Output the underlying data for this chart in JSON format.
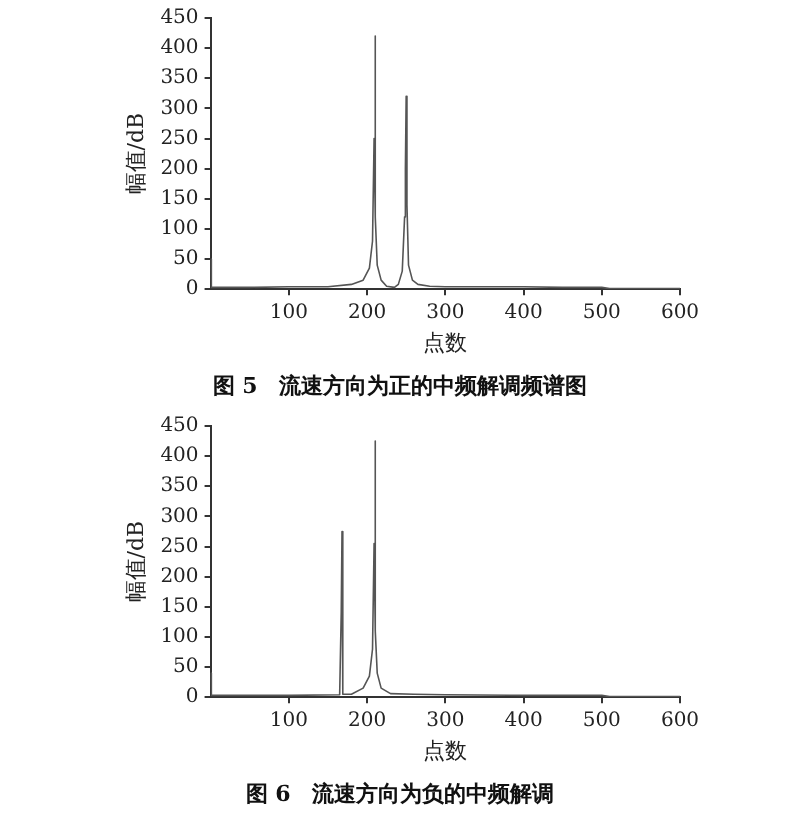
{
  "chart_data": [
    {
      "type": "line",
      "title": "图 5　流速方向为正的中频解调频谱图",
      "xlabel": "点数",
      "ylabel": "幅值/dB",
      "xlim": [
        0,
        600
      ],
      "xticks": [
        100,
        200,
        300,
        400,
        500,
        600
      ],
      "ylim": [
        0,
        450
      ],
      "yticks": [
        0,
        50,
        100,
        150,
        200,
        250,
        300,
        350,
        400,
        450
      ],
      "grid": false,
      "legend": false,
      "marker": "none",
      "line_style": "solid",
      "series": [
        {
          "color": "#555555",
          "x": [
            0,
            1,
            50,
            100,
            150,
            180,
            195,
            203,
            207,
            209,
            210,
            211,
            213,
            218,
            225,
            235,
            240,
            245,
            248,
            249,
            250,
            251,
            253,
            258,
            265,
            280,
            300,
            350,
            400,
            450,
            500,
            510,
            600
          ],
          "values": [
            50,
            3,
            3,
            4,
            4,
            8,
            15,
            35,
            80,
            250,
            420,
            120,
            40,
            15,
            5,
            3,
            8,
            30,
            120,
            200,
            320,
            140,
            40,
            15,
            8,
            5,
            4,
            4,
            4,
            3,
            3,
            1,
            1
          ]
        }
      ]
    },
    {
      "type": "line",
      "title": "图 6　流速方向为负的中频解调",
      "xlabel": "点数",
      "ylabel": "幅值/dB",
      "xlim": [
        0,
        600
      ],
      "xticks": [
        100,
        200,
        300,
        400,
        500,
        600
      ],
      "ylim": [
        0,
        450
      ],
      "yticks": [
        0,
        50,
        100,
        150,
        200,
        250,
        300,
        350,
        400,
        450
      ],
      "grid": false,
      "legend": false,
      "marker": "none",
      "line_style": "solid",
      "series": [
        {
          "color": "#555555",
          "x": [
            0,
            1,
            100,
            165,
            167,
            168,
            169,
            180,
            195,
            203,
            207,
            209,
            210,
            211,
            213,
            218,
            230,
            260,
            300,
            400,
            500,
            510,
            600
          ],
          "values": [
            40,
            3,
            3,
            4,
            140,
            275,
            5,
            5,
            15,
            35,
            80,
            255,
            425,
            110,
            40,
            15,
            6,
            5,
            4,
            3,
            3,
            1,
            1
          ]
        }
      ]
    }
  ]
}
